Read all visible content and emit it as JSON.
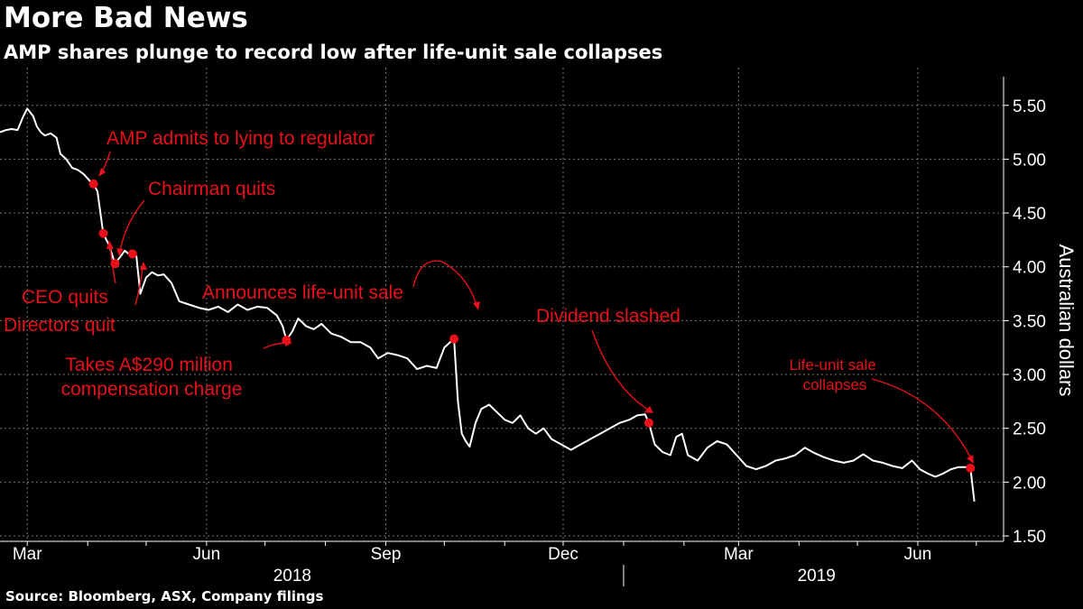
{
  "header": {
    "title": "More Bad News",
    "subtitle": "AMP shares plunge to record low after life-unit sale collapses"
  },
  "footer": {
    "source": "Source: Bloomberg, ASX, Company filings"
  },
  "colors": {
    "background": "#000000",
    "line": "#ffffff",
    "annotation": "#e8101a",
    "grid": "#777777"
  },
  "chart_data": {
    "type": "line",
    "ylabel": "Australian dollars",
    "ylim": [
      1.45,
      5.85
    ],
    "yticks": [
      1.5,
      2.0,
      2.5,
      3.0,
      3.5,
      4.0,
      4.5,
      5.0,
      5.5
    ],
    "ytick_labels": [
      "1.50",
      "2.00",
      "2.50",
      "3.00",
      "3.50",
      "4.00",
      "4.50",
      "5.00",
      "5.50"
    ],
    "xlim": [
      "2018-02-15",
      "2019-07-15"
    ],
    "xticks": [
      {
        "date": "2018-03-01",
        "label": "Mar"
      },
      {
        "date": "2018-06-01",
        "label": "Jun"
      },
      {
        "date": "2018-09-01",
        "label": "Sep"
      },
      {
        "date": "2018-12-01",
        "label": "Dec"
      },
      {
        "date": "2019-03-01",
        "label": "Mar"
      },
      {
        "date": "2019-06-01",
        "label": "Jun"
      }
    ],
    "year_labels": [
      {
        "label": "2018",
        "date": "2018-07-15"
      },
      {
        "label": "2019",
        "date": "2019-04-10"
      }
    ],
    "year_divider": "2019-01-01",
    "grid": true,
    "series": [
      {
        "values": [
          [
            "2018-02-15",
            5.25
          ],
          [
            "2018-02-18",
            5.27
          ],
          [
            "2018-02-21",
            5.28
          ],
          [
            "2018-02-24",
            5.27
          ],
          [
            "2018-02-27",
            5.4
          ],
          [
            "2018-03-01",
            5.47
          ],
          [
            "2018-03-04",
            5.4
          ],
          [
            "2018-03-06",
            5.3
          ],
          [
            "2018-03-08",
            5.25
          ],
          [
            "2018-03-10",
            5.22
          ],
          [
            "2018-03-13",
            5.24
          ],
          [
            "2018-03-16",
            5.2
          ],
          [
            "2018-03-18",
            5.05
          ],
          [
            "2018-03-21",
            5.0
          ],
          [
            "2018-03-24",
            4.92
          ],
          [
            "2018-03-27",
            4.9
          ],
          [
            "2018-03-30",
            4.86
          ],
          [
            "2018-04-02",
            4.8
          ],
          [
            "2018-04-04",
            4.77
          ],
          [
            "2018-04-06",
            4.7
          ],
          [
            "2018-04-09",
            4.31
          ],
          [
            "2018-04-12",
            4.2
          ],
          [
            "2018-04-15",
            4.03
          ],
          [
            "2018-04-18",
            4.1
          ],
          [
            "2018-04-20",
            4.15
          ],
          [
            "2018-04-22",
            4.12
          ],
          [
            "2018-04-24",
            4.12
          ],
          [
            "2018-04-26",
            4.1
          ],
          [
            "2018-04-28",
            3.75
          ],
          [
            "2018-05-01",
            3.9
          ],
          [
            "2018-05-04",
            3.95
          ],
          [
            "2018-05-07",
            3.92
          ],
          [
            "2018-05-10",
            3.93
          ],
          [
            "2018-05-14",
            3.85
          ],
          [
            "2018-05-18",
            3.68
          ],
          [
            "2018-05-23",
            3.65
          ],
          [
            "2018-05-28",
            3.62
          ],
          [
            "2018-06-02",
            3.6
          ],
          [
            "2018-06-07",
            3.63
          ],
          [
            "2018-06-12",
            3.58
          ],
          [
            "2018-06-17",
            3.65
          ],
          [
            "2018-06-22",
            3.6
          ],
          [
            "2018-06-27",
            3.63
          ],
          [
            "2018-07-02",
            3.62
          ],
          [
            "2018-07-07",
            3.55
          ],
          [
            "2018-07-10",
            3.45
          ],
          [
            "2018-07-12",
            3.32
          ],
          [
            "2018-07-15",
            3.4
          ],
          [
            "2018-07-18",
            3.52
          ],
          [
            "2018-07-22",
            3.45
          ],
          [
            "2018-07-26",
            3.42
          ],
          [
            "2018-07-30",
            3.47
          ],
          [
            "2018-08-04",
            3.38
          ],
          [
            "2018-08-09",
            3.35
          ],
          [
            "2018-08-14",
            3.3
          ],
          [
            "2018-08-19",
            3.3
          ],
          [
            "2018-08-24",
            3.25
          ],
          [
            "2018-08-28",
            3.15
          ],
          [
            "2018-09-02",
            3.2
          ],
          [
            "2018-09-07",
            3.18
          ],
          [
            "2018-09-12",
            3.15
          ],
          [
            "2018-09-17",
            3.05
          ],
          [
            "2018-09-22",
            3.08
          ],
          [
            "2018-09-27",
            3.06
          ],
          [
            "2018-10-01",
            3.25
          ],
          [
            "2018-10-04",
            3.3
          ],
          [
            "2018-10-06",
            3.33
          ],
          [
            "2018-10-08",
            2.75
          ],
          [
            "2018-10-10",
            2.45
          ],
          [
            "2018-10-12",
            2.38
          ],
          [
            "2018-10-14",
            2.33
          ],
          [
            "2018-10-17",
            2.55
          ],
          [
            "2018-10-20",
            2.68
          ],
          [
            "2018-10-24",
            2.72
          ],
          [
            "2018-10-28",
            2.65
          ],
          [
            "2018-11-01",
            2.58
          ],
          [
            "2018-11-05",
            2.55
          ],
          [
            "2018-11-09",
            2.62
          ],
          [
            "2018-11-13",
            2.5
          ],
          [
            "2018-11-17",
            2.45
          ],
          [
            "2018-11-21",
            2.5
          ],
          [
            "2018-11-25",
            2.4
          ],
          [
            "2018-11-30",
            2.35
          ],
          [
            "2018-12-05",
            2.3
          ],
          [
            "2018-12-10",
            2.35
          ],
          [
            "2018-12-15",
            2.4
          ],
          [
            "2018-12-20",
            2.45
          ],
          [
            "2018-12-25",
            2.5
          ],
          [
            "2018-12-30",
            2.55
          ],
          [
            "2019-01-04",
            2.58
          ],
          [
            "2019-01-08",
            2.62
          ],
          [
            "2019-01-12",
            2.63
          ],
          [
            "2019-01-14",
            2.55
          ],
          [
            "2019-01-17",
            2.35
          ],
          [
            "2019-01-21",
            2.28
          ],
          [
            "2019-01-25",
            2.25
          ],
          [
            "2019-01-28",
            2.42
          ],
          [
            "2019-01-31",
            2.45
          ],
          [
            "2019-02-03",
            2.25
          ],
          [
            "2019-02-08",
            2.2
          ],
          [
            "2019-02-13",
            2.32
          ],
          [
            "2019-02-18",
            2.38
          ],
          [
            "2019-02-23",
            2.35
          ],
          [
            "2019-02-28",
            2.25
          ],
          [
            "2019-03-05",
            2.15
          ],
          [
            "2019-03-10",
            2.12
          ],
          [
            "2019-03-15",
            2.15
          ],
          [
            "2019-03-20",
            2.2
          ],
          [
            "2019-03-25",
            2.22
          ],
          [
            "2019-03-30",
            2.25
          ],
          [
            "2019-04-04",
            2.32
          ],
          [
            "2019-04-09",
            2.27
          ],
          [
            "2019-04-14",
            2.23
          ],
          [
            "2019-04-19",
            2.2
          ],
          [
            "2019-04-24",
            2.18
          ],
          [
            "2019-04-29",
            2.2
          ],
          [
            "2019-05-04",
            2.26
          ],
          [
            "2019-05-09",
            2.2
          ],
          [
            "2019-05-14",
            2.18
          ],
          [
            "2019-05-19",
            2.15
          ],
          [
            "2019-05-24",
            2.13
          ],
          [
            "2019-05-29",
            2.2
          ],
          [
            "2019-06-02",
            2.12
          ],
          [
            "2019-06-06",
            2.08
          ],
          [
            "2019-06-10",
            2.05
          ],
          [
            "2019-06-14",
            2.08
          ],
          [
            "2019-06-18",
            2.12
          ],
          [
            "2019-06-22",
            2.14
          ],
          [
            "2019-06-26",
            2.14
          ],
          [
            "2019-06-28",
            2.13
          ],
          [
            "2019-06-30",
            1.82
          ]
        ]
      }
    ],
    "events": [
      {
        "label": "AMP admits to lying to regulator",
        "date": "2018-04-04",
        "value": 4.77
      },
      {
        "label": "CEO quits",
        "date": "2018-04-09",
        "value": 4.31
      },
      {
        "label": "Directors quit",
        "date": "2018-04-15",
        "value": 4.03
      },
      {
        "label": "Chairman quits",
        "date": "2018-04-24",
        "value": 4.12
      },
      {
        "label": "Takes A$290 million compensation charge",
        "date": "2018-07-12",
        "value": 3.32
      },
      {
        "label": "Announces life-unit sale",
        "date": "2018-10-06",
        "value": 3.33
      },
      {
        "label": "Dividend slashed",
        "date": "2019-01-14",
        "value": 2.55
      },
      {
        "label": "Life-unit sale collapses",
        "date": "2019-06-28",
        "value": 2.13
      }
    ]
  }
}
